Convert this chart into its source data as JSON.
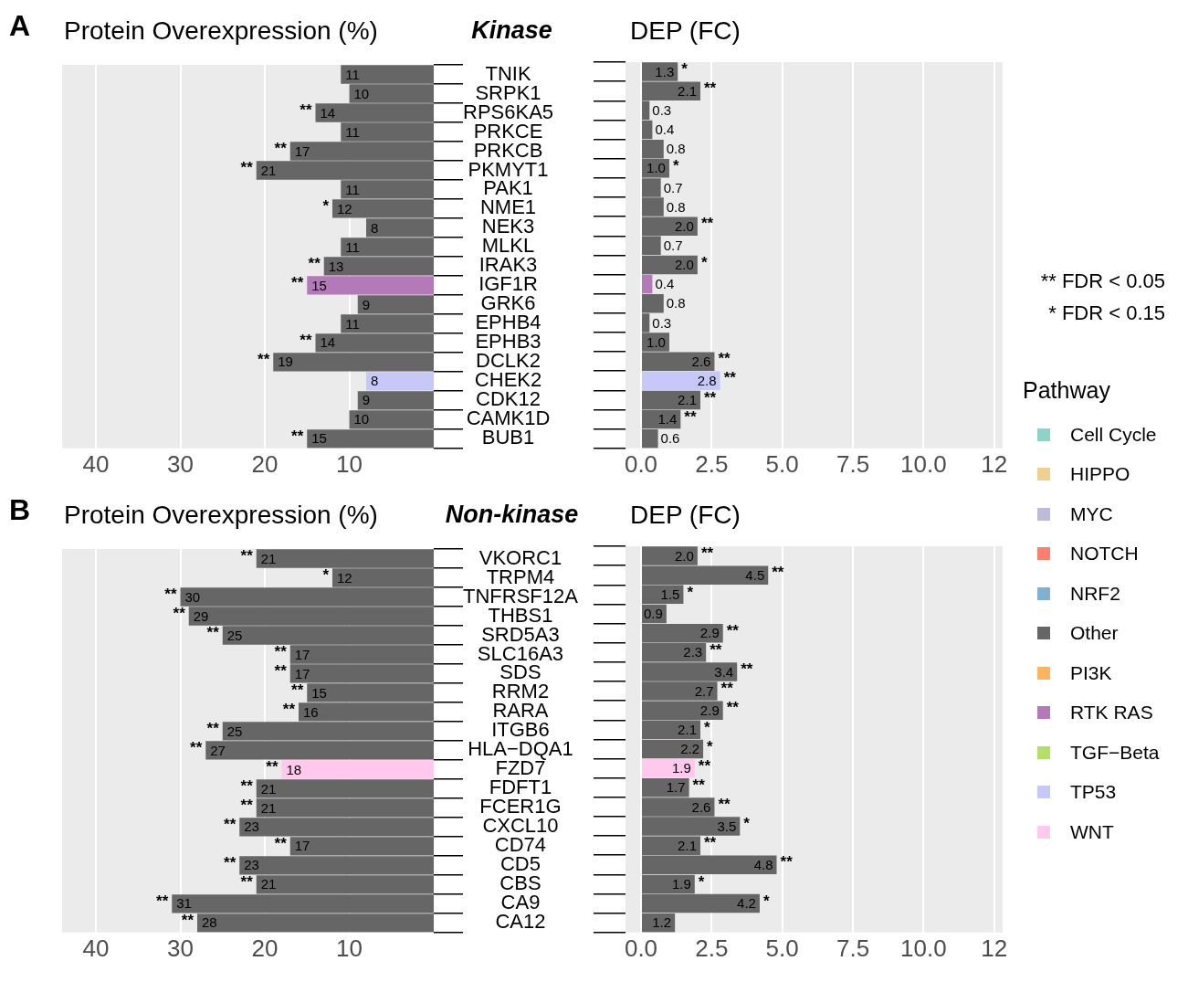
{
  "chart_data": [
    {
      "type": "bar",
      "orientation": "horizontal",
      "stacked": true,
      "title": "Protein Overexpression (%)",
      "subtitle": "Kinase",
      "legend_title": "Pathway",
      "legend": "right",
      "grid": "x",
      "data_labels": true,
      "categories": [
        "TNIK",
        "SRPK1",
        "RPS6KA5",
        "PRKCE",
        "PRKCB",
        "PKMYT1",
        "PAK1",
        "NME1",
        "NEK3",
        "MLKL",
        "IRAK3",
        "IGF1R",
        "GRK6",
        "EPHB4",
        "EPHB3",
        "DCLK2",
        "CHEK2",
        "CDK12",
        "CAMK1D",
        "BUB1"
      ],
      "series": [
        {
          "name": "Cell Cycle",
          "color": "#8dd3c7",
          "values": [
            null,
            null,
            null,
            null,
            null,
            null,
            null,
            null,
            null,
            null,
            null,
            null,
            null,
            null,
            null,
            null,
            null,
            null,
            null,
            null
          ]
        },
        {
          "name": "HIPPO",
          "color": "#f0d090",
          "values": [
            null,
            null,
            null,
            null,
            null,
            null,
            null,
            null,
            null,
            null,
            null,
            null,
            null,
            null,
            null,
            null,
            null,
            null,
            null,
            null
          ]
        },
        {
          "name": "MYC",
          "color": "#bebada",
          "values": [
            null,
            null,
            null,
            null,
            null,
            null,
            null,
            null,
            null,
            null,
            null,
            null,
            null,
            null,
            null,
            null,
            null,
            null,
            null,
            null
          ]
        },
        {
          "name": "NOTCH",
          "color": "#fb8072",
          "values": [
            null,
            null,
            null,
            null,
            null,
            null,
            null,
            null,
            null,
            null,
            null,
            null,
            null,
            null,
            null,
            null,
            null,
            null,
            null,
            null
          ]
        },
        {
          "name": "NRF2",
          "color": "#80b1d3",
          "values": [
            null,
            null,
            null,
            null,
            null,
            null,
            null,
            null,
            null,
            null,
            null,
            null,
            null,
            null,
            null,
            null,
            null,
            null,
            null,
            null
          ]
        },
        {
          "name": "Other",
          "color": "#666666",
          "values": [
            11,
            10,
            14,
            11,
            17,
            21,
            11,
            12,
            8,
            11,
            13,
            null,
            9,
            11,
            14,
            19,
            null,
            9,
            10,
            15
          ]
        },
        {
          "name": "PI3K",
          "color": "#fdb462",
          "values": [
            null,
            null,
            null,
            null,
            null,
            null,
            null,
            null,
            null,
            null,
            null,
            null,
            null,
            null,
            null,
            null,
            null,
            null,
            null,
            null
          ]
        },
        {
          "name": "RTK RAS",
          "color": "#b479b8",
          "values": [
            null,
            null,
            null,
            null,
            null,
            null,
            null,
            null,
            null,
            null,
            null,
            15,
            null,
            null,
            null,
            null,
            null,
            null,
            null,
            null
          ]
        },
        {
          "name": "TGF−Beta",
          "color": "#b3de69",
          "values": [
            null,
            null,
            null,
            null,
            null,
            null,
            null,
            null,
            null,
            null,
            null,
            null,
            null,
            null,
            null,
            null,
            null,
            null,
            null,
            null
          ]
        },
        {
          "name": "TP53",
          "color": "#c8c8f8",
          "values": [
            null,
            null,
            null,
            null,
            null,
            null,
            null,
            null,
            null,
            null,
            null,
            null,
            null,
            null,
            null,
            null,
            8,
            null,
            null,
            null
          ]
        },
        {
          "name": "WNT",
          "color": "#ffc8ec",
          "values": [
            null,
            null,
            null,
            null,
            null,
            null,
            null,
            null,
            null,
            null,
            null,
            null,
            null,
            null,
            null,
            null,
            null,
            null,
            null,
            null
          ]
        }
      ],
      "xlim": [
        44,
        0
      ],
      "xticks": [
        40,
        30,
        20,
        10
      ],
      "annotations": [
        "A",
        "** FDR < 0.05",
        "* FDR < 0.15",
        {
          "text": "**",
          "x": 14,
          "y": "RPS6KA5"
        },
        {
          "text": "**",
          "x": 17,
          "y": "PRKCB"
        },
        {
          "text": "**",
          "x": 21,
          "y": "PKMYT1"
        },
        {
          "text": "*",
          "x": 12,
          "y": "NME1"
        },
        {
          "text": "**",
          "x": 13,
          "y": "IRAK3"
        },
        {
          "text": "**",
          "x": 15,
          "y": "IGF1R"
        },
        {
          "text": "**",
          "x": 14,
          "y": "EPHB3"
        },
        {
          "text": "**",
          "x": 19,
          "y": "DCLK2"
        },
        {
          "text": "**",
          "x": 15,
          "y": "BUB1"
        }
      ]
    },
    {
      "type": "bar",
      "orientation": "horizontal",
      "title": "DEP (FC)",
      "grid": "x",
      "tick_labels": "x",
      "categories": [
        "TNIK",
        "SRPK1",
        "RPS6KA5",
        "PRKCE",
        "PRKCB",
        "PKMYT1",
        "PAK1",
        "NME1",
        "NEK3",
        "MLKL",
        "IRAK3",
        "IGF1R",
        "GRK6",
        "EPHB4",
        "EPHB3",
        "DCLK2",
        "CHEK2",
        "CDK12",
        "CAMK1D",
        "BUB1"
      ],
      "values": [
        1.3,
        2.1,
        0.3,
        0.4,
        0.8,
        1.0,
        0.7,
        0.8,
        2.0,
        0.7,
        2.0,
        0.4,
        0.8,
        0.3,
        1.0,
        2.6,
        2.8,
        2.1,
        1.4,
        0.6
      ],
      "value_labels": [
        "1.3",
        "2.1",
        "0.3",
        "0.4",
        "0.8",
        "1.0",
        "0.7",
        "0.8",
        "2.0",
        "0.7",
        "2.0",
        "0.4",
        "0.8",
        "0.3",
        "1.0",
        "2.6",
        "2.8",
        "2.1",
        "1.4",
        "0.6"
      ],
      "colors": [
        "#666666",
        "#666666",
        "#666666",
        "#666666",
        "#666666",
        "#666666",
        "#666666",
        "#666666",
        "#666666",
        "#666666",
        "#666666",
        "#b479b8",
        "#666666",
        "#666666",
        "#666666",
        "#666666",
        "#c8c8f8",
        "#666666",
        "#666666",
        "#666666"
      ],
      "xlim": [
        -0.55,
        12.8
      ],
      "xticks": [
        {
          "value": 0,
          "label": "0.0"
        },
        2.5,
        {
          "value": 5,
          "label": "5.0"
        },
        7.5,
        {
          "value": 10,
          "label": "10.0"
        },
        {
          "value": 12.5,
          "label": "12"
        }
      ],
      "annotations": [
        {
          "text": "*",
          "x": 1.3,
          "y": "TNIK"
        },
        {
          "text": "**",
          "x": 2.1,
          "y": "SRPK1"
        },
        {
          "text": "*",
          "x": 1.0,
          "y": "PKMYT1"
        },
        {
          "text": "**",
          "x": 2.0,
          "y": "NEK3"
        },
        {
          "text": "*",
          "x": 2.0,
          "y": "IRAK3"
        },
        {
          "text": "**",
          "x": 2.6,
          "y": "DCLK2"
        },
        {
          "text": "**",
          "x": 2.8,
          "y": "CHEK2"
        },
        {
          "text": "**",
          "x": 2.1,
          "y": "CDK12"
        },
        {
          "text": "**",
          "x": 1.4,
          "y": "CAMK1D"
        }
      ]
    },
    {
      "type": "bar",
      "orientation": "horizontal",
      "title": "Protein Overexpression (%)",
      "subtitle": "Non-kinase",
      "grid": "x",
      "data_labels": true,
      "categories": [
        "VKORC1",
        "TRPM4",
        "TNFRSF12A",
        "THBS1",
        "SRD5A3",
        "SLC16A3",
        "SDS",
        "RRM2",
        "RARA",
        "ITGB6",
        "HLA−DQA1",
        "FZD7",
        "FDFT1",
        "FCER1G",
        "CXCL10",
        "CD74",
        "CD5",
        "CBS",
        "CA9",
        "CA12"
      ],
      "values": [
        21,
        12,
        30,
        29,
        25,
        17,
        17,
        15,
        16,
        25,
        27,
        18,
        21,
        21,
        23,
        17,
        23,
        21,
        31,
        28
      ],
      "colors": [
        "#666666",
        "#666666",
        "#666666",
        "#666666",
        "#666666",
        "#666666",
        "#666666",
        "#666666",
        "#666666",
        "#666666",
        "#666666",
        "#ffc8ec",
        "#666666",
        "#666666",
        "#666666",
        "#666666",
        "#666666",
        "#666666",
        "#666666",
        "#666666"
      ],
      "xlim": [
        44,
        0
      ],
      "xticks": [
        40,
        30,
        20,
        10
      ],
      "annotations": [
        "B",
        {
          "text": "**",
          "x": 21,
          "y": "VKORC1"
        },
        {
          "text": "*",
          "x": 12,
          "y": "TRPM4"
        },
        {
          "text": "**",
          "x": 30,
          "y": "TNFRSF12A"
        },
        {
          "text": "**",
          "x": 29,
          "y": "THBS1"
        },
        {
          "text": "**",
          "x": 25,
          "y": "SRD5A3"
        },
        {
          "text": "**",
          "x": 17,
          "y": "SLC16A3"
        },
        {
          "text": "**",
          "x": 17,
          "y": "SDS"
        },
        {
          "text": "**",
          "x": 15,
          "y": "RRM2"
        },
        {
          "text": "**",
          "x": 16,
          "y": "RARA"
        },
        {
          "text": "**",
          "x": 25,
          "y": "ITGB6"
        },
        {
          "text": "**",
          "x": 27,
          "y": "HLA−DQA1"
        },
        {
          "text": "**",
          "x": 18,
          "y": "FZD7"
        },
        {
          "text": "**",
          "x": 21,
          "y": "FDFT1"
        },
        {
          "text": "**",
          "x": 21,
          "y": "FCER1G"
        },
        {
          "text": "**",
          "x": 23,
          "y": "CXCL10"
        },
        {
          "text": "**",
          "x": 17,
          "y": "CD74"
        },
        {
          "text": "**",
          "x": 23,
          "y": "CD5"
        },
        {
          "text": "**",
          "x": 21,
          "y": "CBS"
        },
        {
          "text": "**",
          "x": 31,
          "y": "CA9"
        },
        {
          "text": "**",
          "x": 28,
          "y": "CA12"
        }
      ]
    },
    {
      "type": "bar",
      "orientation": "horizontal",
      "title": "DEP (FC)",
      "grid": "x",
      "tick_labels": "x",
      "categories": [
        "VKORC1",
        "TRPM4",
        "TNFRSF12A",
        "THBS1",
        "SRD5A3",
        "SLC16A3",
        "SDS",
        "RRM2",
        "RARA",
        "ITGB6",
        "HLA−DQA1",
        "FZD7",
        "FDFT1",
        "FCER1G",
        "CXCL10",
        "CD74",
        "CD5",
        "CBS",
        "CA9",
        "CA12"
      ],
      "values": [
        2.0,
        4.5,
        1.5,
        0.9,
        2.9,
        2.3,
        3.4,
        2.7,
        2.9,
        2.1,
        2.2,
        1.9,
        1.7,
        2.6,
        3.5,
        2.1,
        4.8,
        1.9,
        4.2,
        1.2
      ],
      "value_labels": [
        "2.0",
        "4.5",
        "1.5",
        "0.9",
        "2.9",
        "2.3",
        "3.4",
        "2.7",
        "2.9",
        "2.1",
        "2.2",
        "1.9",
        "1.7",
        "2.6",
        "3.5",
        "2.1",
        "4.8",
        "1.9",
        "4.2",
        "1.2"
      ],
      "colors": [
        "#666666",
        "#666666",
        "#666666",
        "#666666",
        "#666666",
        "#666666",
        "#666666",
        "#666666",
        "#666666",
        "#666666",
        "#666666",
        "#ffc8ec",
        "#666666",
        "#666666",
        "#666666",
        "#666666",
        "#666666",
        "#666666",
        "#666666",
        "#666666"
      ],
      "xlim": [
        -0.55,
        12.8
      ],
      "xticks": [
        {
          "value": 0,
          "label": "0.0"
        },
        2.5,
        {
          "value": 5,
          "label": "5.0"
        },
        7.5,
        {
          "value": 10,
          "label": "10.0"
        },
        {
          "value": 12.5,
          "label": "12"
        }
      ],
      "annotations": [
        {
          "text": "**",
          "x": 2.0,
          "y": "VKORC1"
        },
        {
          "text": "**",
          "x": 4.5,
          "y": "TRPM4"
        },
        {
          "text": "*",
          "x": 1.5,
          "y": "TNFRSF12A"
        },
        {
          "text": "**",
          "x": 2.9,
          "y": "SRD5A3"
        },
        {
          "text": "**",
          "x": 2.3,
          "y": "SLC16A3"
        },
        {
          "text": "**",
          "x": 3.4,
          "y": "SDS"
        },
        {
          "text": "**",
          "x": 2.7,
          "y": "RRM2"
        },
        {
          "text": "**",
          "x": 2.9,
          "y": "RARA"
        },
        {
          "text": "*",
          "x": 2.1,
          "y": "ITGB6"
        },
        {
          "text": "*",
          "x": 2.2,
          "y": "HLA−DQA1"
        },
        {
          "text": "**",
          "x": 1.9,
          "y": "FZD7"
        },
        {
          "text": "**",
          "x": 1.7,
          "y": "FDFT1"
        },
        {
          "text": "**",
          "x": 2.6,
          "y": "FCER1G"
        },
        {
          "text": "*",
          "x": 3.5,
          "y": "CXCL10"
        },
        {
          "text": "**",
          "x": 2.1,
          "y": "CD74"
        },
        {
          "text": "**",
          "x": 4.8,
          "y": "CD5"
        },
        {
          "text": "*",
          "x": 1.9,
          "y": "CBS"
        },
        {
          "text": "*",
          "x": 4.2,
          "y": "CA9"
        }
      ]
    }
  ]
}
